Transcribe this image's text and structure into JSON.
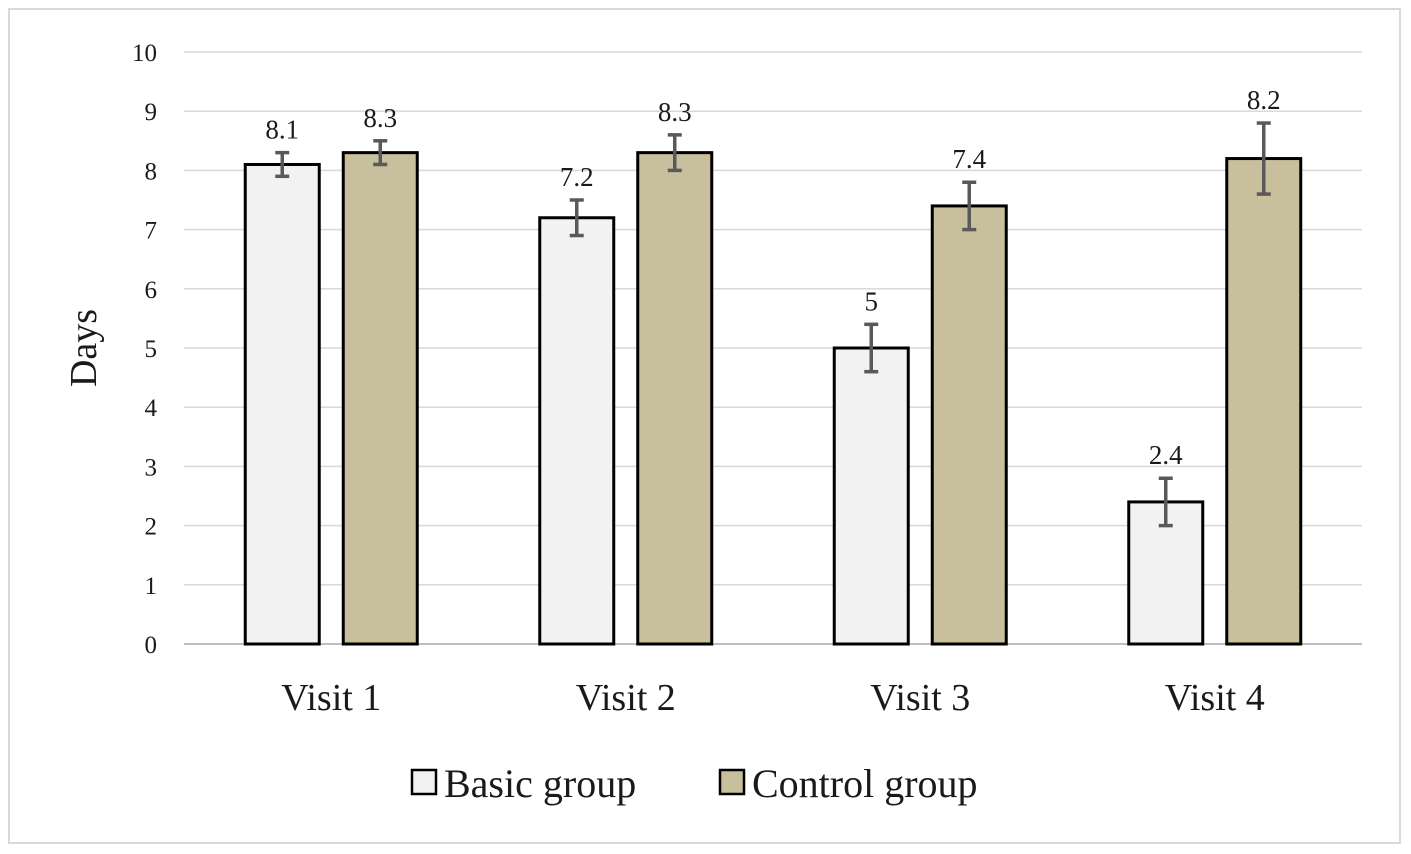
{
  "chart_data": {
    "type": "bar",
    "title": "",
    "xlabel": "",
    "ylabel": "Days",
    "ylim": [
      0,
      10
    ],
    "yticks": [
      "0",
      "1",
      "2",
      "3",
      "4",
      "5",
      "6",
      "7",
      "8",
      "9",
      "10"
    ],
    "grid": true,
    "legend_position": "bottom",
    "categories": [
      "Visit 1",
      "Visit 2",
      "Visit 3",
      "Visit 4"
    ],
    "series": [
      {
        "name": "Basic group",
        "color": "#f2f2f2",
        "values": [
          8.1,
          7.2,
          5,
          2.4
        ],
        "labels": [
          "8.1",
          "7.2",
          "5",
          "2.4"
        ],
        "error": [
          0.2,
          0.3,
          0.4,
          0.4
        ]
      },
      {
        "name": "Control group",
        "color": "#c8bf9c",
        "values": [
          8.3,
          8.3,
          7.4,
          8.2
        ],
        "labels": [
          "8.3",
          "8.3",
          "7.4",
          "8.2"
        ],
        "error": [
          0.2,
          0.3,
          0.4,
          0.6
        ]
      }
    ]
  }
}
